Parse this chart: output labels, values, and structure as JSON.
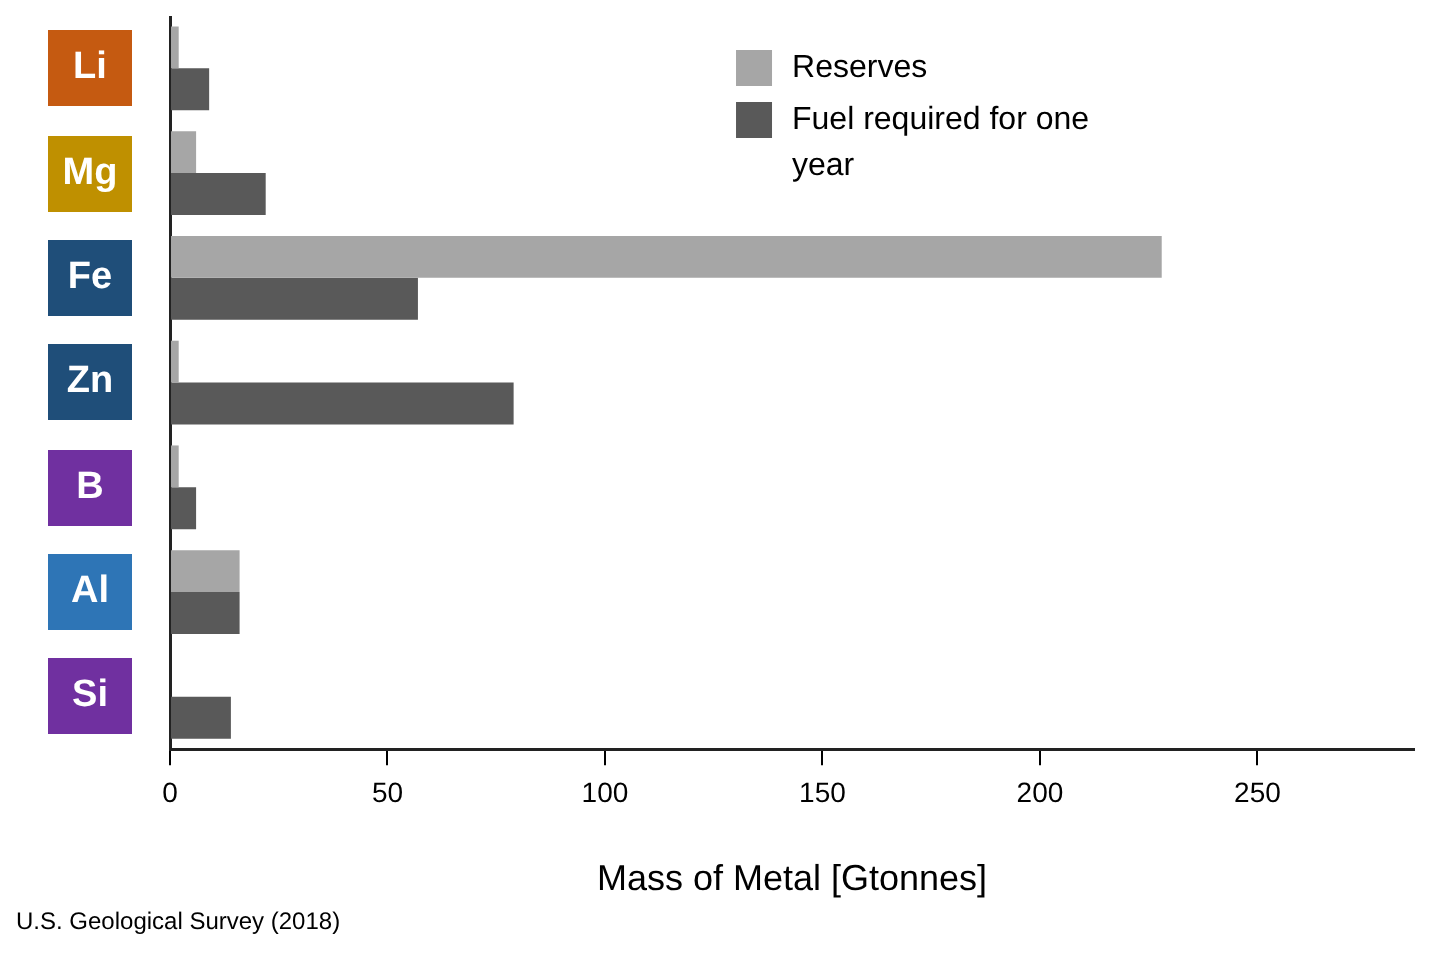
{
  "chart_data": {
    "type": "bar",
    "orientation": "horizontal",
    "xlabel": "Mass of Metal [Gtonnes]",
    "categories": [
      "Li",
      "Mg",
      "Fe",
      "Zn",
      "B",
      "Al",
      "Si"
    ],
    "series": [
      {
        "name": "Reserves",
        "color": "#a6a6a6",
        "values": [
          2,
          6,
          228,
          2,
          2,
          16,
          null
        ]
      },
      {
        "name": "Fuel required for one year",
        "color": "#595959",
        "values": [
          9,
          22,
          57,
          79,
          6,
          16,
          14
        ]
      }
    ],
    "xlim": [
      0,
      286
    ],
    "xticks": [
      0,
      50,
      100,
      150,
      200,
      250
    ],
    "legend": "top",
    "annotations": [
      "U.S. Geological Survey (2018)"
    ]
  }
}
